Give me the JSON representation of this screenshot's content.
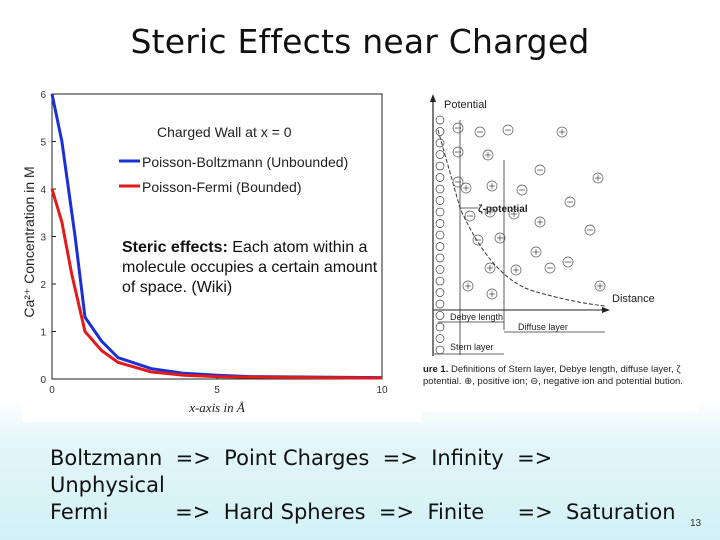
{
  "slide": {
    "title": "Steric Effects near Charged",
    "page_number": "13"
  },
  "left_chart": {
    "ylabel": "Ca²⁺ Concentration in M",
    "xlabel": "x-axis in Å",
    "annotation_title": "Charged Wall at x = 0",
    "legend": [
      {
        "label": "Poisson-Boltzmann (Unbounded)",
        "color": "#1a2fd6"
      },
      {
        "label": "Poisson-Fermi (Bounded)",
        "color": "#e31a1a"
      }
    ],
    "y_ticks": [
      "6",
      "5",
      "4",
      "3",
      "2",
      "1",
      "0"
    ],
    "x_ticks": [
      "0",
      "5",
      "10"
    ]
  },
  "chart_data": {
    "type": "line",
    "xlabel": "x-axis in Å",
    "ylabel": "Ca²⁺ Concentration in M",
    "xlim": [
      0,
      10
    ],
    "ylim": [
      0,
      6
    ],
    "series": [
      {
        "name": "Poisson-Boltzmann (Unbounded)",
        "color": "#1a2fd6",
        "x": [
          0,
          0.3,
          0.7,
          1.0,
          1.5,
          2.0,
          3.0,
          4.0,
          5.0,
          6.0,
          8.0,
          10.0
        ],
        "y": [
          6.0,
          5.0,
          3.0,
          1.3,
          0.8,
          0.45,
          0.22,
          0.12,
          0.08,
          0.05,
          0.04,
          0.03
        ]
      },
      {
        "name": "Poisson-Fermi (Bounded)",
        "color": "#e31a1a",
        "x": [
          0,
          0.3,
          0.6,
          1.0,
          1.5,
          2.0,
          3.0,
          4.0,
          5.0,
          6.0,
          8.0,
          10.0
        ],
        "y": [
          4.0,
          3.3,
          2.2,
          1.0,
          0.6,
          0.35,
          0.15,
          0.08,
          0.05,
          0.04,
          0.03,
          0.02
        ]
      }
    ]
  },
  "callout": {
    "bold": "Steric effects:",
    "text": " Each atom within a molecule occupies a certain amount of space. (Wiki)"
  },
  "right_figure": {
    "potential_label": "Potential",
    "zeta_label": "ζ-potential",
    "distance_label": "Distance",
    "debye_label": "Debye length",
    "diffuse_label": "Diffuse layer",
    "stern_label": "Stern layer",
    "caption_fig": "ure 1.",
    "caption_text": " Definitions of Stern layer, Debye length, diffuse layer, ζ potential. ⊕, positive ion; ⊖, negative ion and potential bution."
  },
  "bottom_text": {
    "line1": "Boltzmann  =>  Point Charges  =>  Infinity  =>",
    "line2": "Unphysical",
    "line3": "Fermi          =>  Hard Spheres  =>  Finite     =>  Saturation"
  }
}
